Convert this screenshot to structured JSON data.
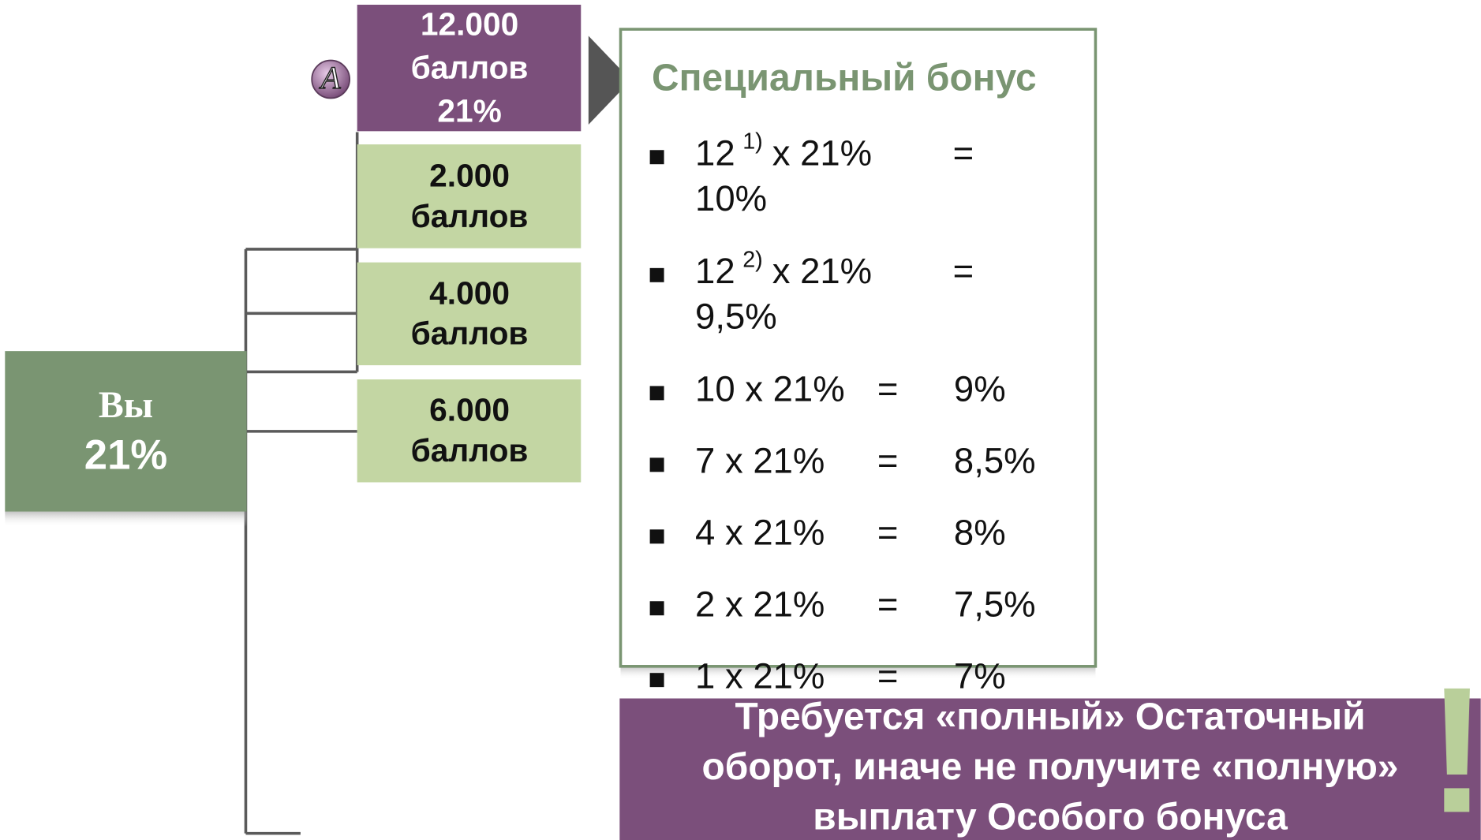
{
  "you": {
    "label": "Вы",
    "value": "21%"
  },
  "badge": "A",
  "levels": [
    {
      "lines": [
        "12.000",
        "баллов",
        "21%"
      ]
    },
    {
      "lines": [
        "2.000",
        "баллов"
      ]
    },
    {
      "lines": [
        "4.000",
        "баллов"
      ]
    },
    {
      "lines": [
        "6.000",
        "баллов"
      ]
    }
  ],
  "bonus": {
    "title": "Специальный бонус",
    "items": [
      {
        "base": "12",
        "sup": "1)",
        "factor": "x 21%",
        "eq": "=",
        "result": "10%"
      },
      {
        "base": "12",
        "sup": "2)",
        "factor": "x 21%",
        "eq": "=",
        "result": "9,5%"
      },
      {
        "base": "10 x 21%",
        "eq": "=",
        "result": "9%"
      },
      {
        "base": "7 x 21%",
        "eq": "=",
        "result": "8,5%"
      },
      {
        "base": "4 x 21%",
        "eq": "=",
        "result": "8%"
      },
      {
        "base": "2 x 21%",
        "eq": "=",
        "result": "7,5%"
      },
      {
        "base": "1 x 21%",
        "eq": "=",
        "result": "7%"
      }
    ]
  },
  "note": {
    "lines": [
      "Требуется «полный» Остаточный",
      "оборот, иначе не получите «полную»",
      "выплату Особого бонуса"
    ],
    "mark": "!"
  }
}
